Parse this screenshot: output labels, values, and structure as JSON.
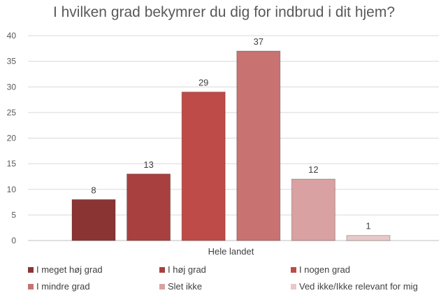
{
  "chart_data": {
    "type": "bar",
    "title": "I hvilken grad bekymrer du dig for indbrud i dit hjem?",
    "categories": [
      "Hele landet"
    ],
    "ylim": [
      0,
      40
    ],
    "yticks": [
      0,
      5,
      10,
      15,
      20,
      25,
      30,
      35,
      40
    ],
    "grid": true,
    "legend_position": "bottom",
    "series": [
      {
        "name": "I meget høj grad",
        "values": [
          8
        ],
        "color": "#8B3434"
      },
      {
        "name": "I høj grad",
        "values": [
          13
        ],
        "color": "#A84040"
      },
      {
        "name": "I nogen grad",
        "values": [
          29
        ],
        "color": "#BE4B48"
      },
      {
        "name": "I mindre grad",
        "values": [
          37
        ],
        "color": "#C87272"
      },
      {
        "name": "Slet ikke",
        "values": [
          12
        ],
        "color": "#D9A1A1"
      },
      {
        "name": "Ved ikke/Ikke relevant for mig",
        "values": [
          1
        ],
        "color": "#E8C8C8"
      }
    ]
  }
}
